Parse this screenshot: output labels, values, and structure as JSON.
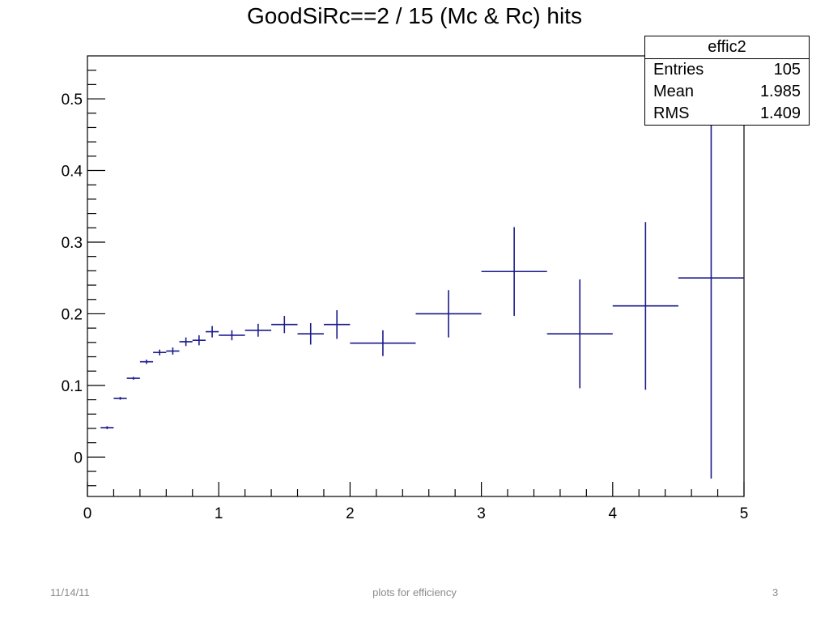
{
  "chart_data": {
    "type": "scatter",
    "title": "GoodSiRc==2 / 15 (Mc & Rc) hits",
    "xlim": [
      0,
      5
    ],
    "ylim": [
      -0.055,
      0.56
    ],
    "x_ticks": [
      "0",
      "1",
      "2",
      "3",
      "4",
      "5"
    ],
    "y_ticks": [
      "0",
      "0.1",
      "0.2",
      "0.3",
      "0.4",
      "0.5"
    ],
    "grid": false,
    "series": [
      {
        "color": "#1a1a8c",
        "points": [
          {
            "x": 0.15,
            "xerr": 0.05,
            "y": 0.041,
            "yerr": 0.002
          },
          {
            "x": 0.25,
            "xerr": 0.05,
            "y": 0.082,
            "yerr": 0.002
          },
          {
            "x": 0.35,
            "xerr": 0.05,
            "y": 0.11,
            "yerr": 0.002
          },
          {
            "x": 0.45,
            "xerr": 0.05,
            "y": 0.133,
            "yerr": 0.003
          },
          {
            "x": 0.55,
            "xerr": 0.05,
            "y": 0.146,
            "yerr": 0.004
          },
          {
            "x": 0.65,
            "xerr": 0.05,
            "y": 0.148,
            "yerr": 0.005
          },
          {
            "x": 0.75,
            "xerr": 0.05,
            "y": 0.161,
            "yerr": 0.006
          },
          {
            "x": 0.85,
            "xerr": 0.05,
            "y": 0.163,
            "yerr": 0.007
          },
          {
            "x": 0.95,
            "xerr": 0.05,
            "y": 0.175,
            "yerr": 0.008
          },
          {
            "x": 1.1,
            "xerr": 0.1,
            "y": 0.17,
            "yerr": 0.007
          },
          {
            "x": 1.3,
            "xerr": 0.1,
            "y": 0.177,
            "yerr": 0.009
          },
          {
            "x": 1.5,
            "xerr": 0.1,
            "y": 0.185,
            "yerr": 0.012
          },
          {
            "x": 1.7,
            "xerr": 0.1,
            "y": 0.172,
            "yerr": 0.015
          },
          {
            "x": 1.9,
            "xerr": 0.1,
            "y": 0.185,
            "yerr": 0.02
          },
          {
            "x": 2.25,
            "xerr": 0.25,
            "y": 0.159,
            "yerr": 0.018
          },
          {
            "x": 2.75,
            "xerr": 0.25,
            "y": 0.2,
            "yerr": 0.033
          },
          {
            "x": 3.25,
            "xerr": 0.25,
            "y": 0.259,
            "yerr": 0.062
          },
          {
            "x": 3.75,
            "xerr": 0.25,
            "y": 0.172,
            "yerr": 0.076
          },
          {
            "x": 4.25,
            "xerr": 0.25,
            "y": 0.211,
            "yerr": 0.117
          },
          {
            "x": 4.75,
            "xerr": 0.25,
            "y": 0.25,
            "yerr": 0.28
          }
        ]
      }
    ]
  },
  "stats_box": {
    "title": "effic2",
    "rows": [
      {
        "label": "Entries",
        "value": "105"
      },
      {
        "label": "Mean",
        "value": "1.985"
      },
      {
        "label": "RMS",
        "value": "1.409"
      }
    ]
  },
  "footer": {
    "date": "11/14/11",
    "center": "plots for efficiency",
    "page": "3"
  }
}
